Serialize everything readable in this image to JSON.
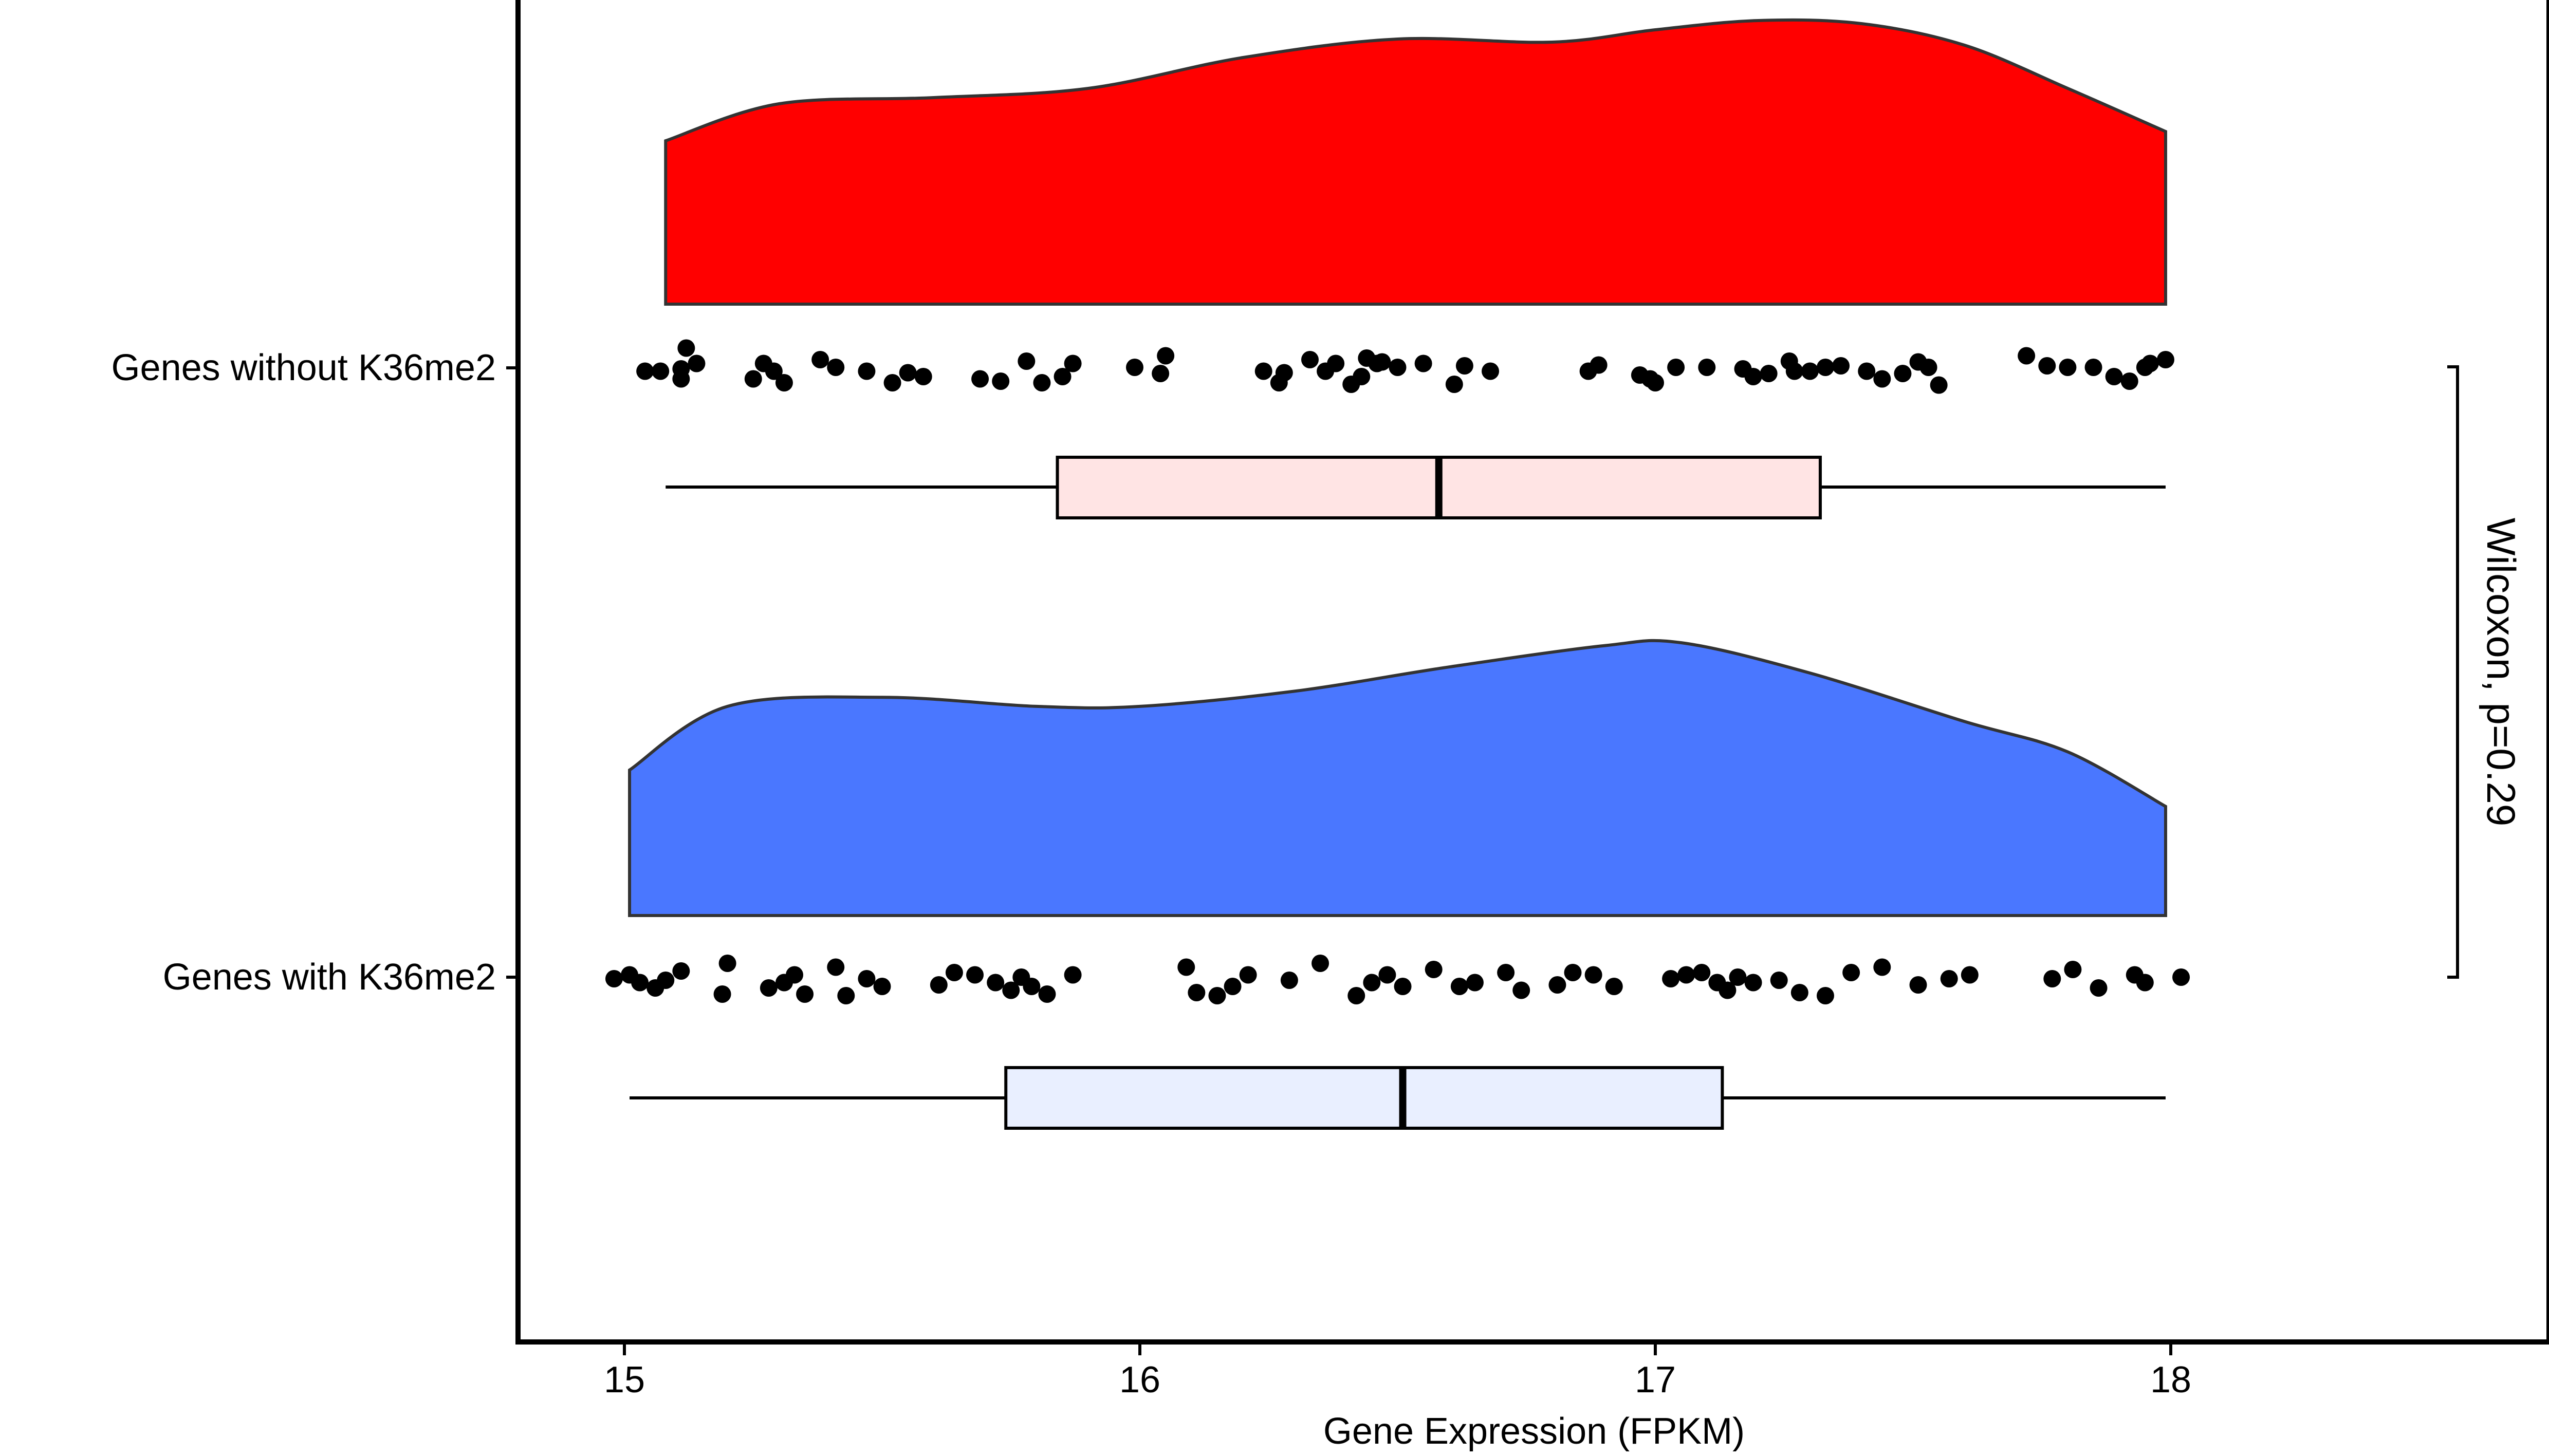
{
  "chart_data": {
    "type": "raincloud",
    "xlabel": "Gene Expression (FPKM)",
    "ylabel": "",
    "title": "",
    "xlim": [
      14.82,
      18.72
    ],
    "xticks": [
      15,
      16,
      17,
      18
    ],
    "xtick_labels": [
      "15",
      "16",
      "17",
      "18"
    ],
    "grid": false,
    "legend": "none",
    "annotation": {
      "text": "Wilcoxon, p=0.29",
      "spans_groups": [
        "Genes without K36me2",
        "Genes with K36me2"
      ]
    },
    "groups": [
      {
        "label": "Genes without K36me2",
        "fill_color": "#ff0000",
        "box_color": "#ffe4e4",
        "density": {
          "x": [
            15.08,
            15.3,
            15.6,
            15.9,
            16.2,
            16.5,
            16.8,
            17.0,
            17.2,
            17.4,
            17.6,
            17.8,
            17.99
          ],
          "y": [
            0.53,
            0.65,
            0.67,
            0.7,
            0.8,
            0.86,
            0.85,
            0.89,
            0.92,
            0.91,
            0.84,
            0.7,
            0.56
          ]
        },
        "box": {
          "min": 15.08,
          "q1": 15.84,
          "median": 16.58,
          "q3": 17.32,
          "max": 17.99
        },
        "points": {
          "x": [
            15.04,
            15.07,
            15.11,
            15.12,
            15.14,
            15.11,
            15.25,
            15.27,
            15.29,
            15.31,
            15.38,
            15.41,
            15.47,
            15.52,
            15.55,
            15.58,
            15.69,
            15.73,
            15.78,
            15.81,
            15.85,
            15.87,
            15.99,
            16.04,
            16.05,
            16.24,
            16.27,
            16.28,
            16.33,
            16.36,
            16.38,
            16.41,
            16.43,
            16.44,
            16.46,
            16.47,
            16.5,
            16.55,
            16.61,
            16.63,
            16.68,
            16.87,
            16.89,
            16.97,
            16.99,
            17.0,
            17.04,
            17.1,
            17.17,
            17.19,
            17.22,
            17.26,
            17.27,
            17.3,
            17.33,
            17.36,
            17.41,
            17.44,
            17.48,
            17.51,
            17.53,
            17.55,
            17.72,
            17.76,
            17.8,
            17.85,
            17.89,
            17.92,
            17.95,
            17.96,
            17.99
          ],
          "j": [
            0.55,
            0.55,
            0.52,
            0.25,
            0.45,
            0.65,
            0.65,
            0.45,
            0.55,
            0.7,
            0.4,
            0.5,
            0.55,
            0.7,
            0.57,
            0.62,
            0.65,
            0.68,
            0.42,
            0.7,
            0.62,
            0.45,
            0.5,
            0.58,
            0.35,
            0.55,
            0.7,
            0.57,
            0.4,
            0.55,
            0.45,
            0.72,
            0.62,
            0.38,
            0.45,
            0.43,
            0.5,
            0.45,
            0.72,
            0.48,
            0.55,
            0.55,
            0.47,
            0.6,
            0.65,
            0.7,
            0.5,
            0.5,
            0.52,
            0.62,
            0.58,
            0.42,
            0.55,
            0.55,
            0.5,
            0.48,
            0.55,
            0.65,
            0.58,
            0.43,
            0.5,
            0.73,
            0.35,
            0.48,
            0.5,
            0.5,
            0.62,
            0.68,
            0.5,
            0.45,
            0.4
          ]
        }
      },
      {
        "label": "Genes with K36me2",
        "fill_color": "#4a77ff",
        "box_color": "#e9efff",
        "density": {
          "x": [
            15.01,
            15.2,
            15.5,
            15.8,
            16.0,
            16.3,
            16.6,
            16.9,
            17.05,
            17.3,
            17.6,
            17.8,
            17.99
          ],
          "y": [
            0.48,
            0.69,
            0.72,
            0.69,
            0.69,
            0.74,
            0.82,
            0.89,
            0.9,
            0.8,
            0.64,
            0.54,
            0.36
          ]
        },
        "box": {
          "min": 15.01,
          "q1": 15.74,
          "median": 16.51,
          "q3": 17.13,
          "max": 17.99
        },
        "points": {
          "x": [
            14.98,
            15.01,
            15.03,
            15.06,
            15.08,
            15.11,
            15.19,
            15.2,
            15.28,
            15.31,
            15.33,
            15.35,
            15.41,
            15.43,
            15.47,
            15.5,
            15.61,
            15.64,
            15.68,
            15.72,
            15.75,
            15.77,
            15.79,
            15.82,
            15.87,
            16.09,
            16.11,
            16.15,
            16.18,
            16.21,
            16.29,
            16.35,
            16.42,
            16.45,
            16.48,
            16.51,
            16.57,
            16.62,
            16.65,
            16.71,
            16.74,
            16.81,
            16.84,
            16.88,
            16.92,
            17.03,
            17.06,
            17.09,
            17.12,
            17.14,
            17.16,
            17.19,
            17.24,
            17.28,
            17.33,
            17.38,
            17.44,
            17.51,
            17.57,
            17.61,
            17.77,
            17.81,
            17.86,
            17.93,
            17.95,
            18.02
          ],
          "j": [
            0.5,
            0.45,
            0.55,
            0.62,
            0.52,
            0.4,
            0.7,
            0.3,
            0.62,
            0.55,
            0.45,
            0.7,
            0.35,
            0.72,
            0.5,
            0.6,
            0.58,
            0.42,
            0.45,
            0.55,
            0.65,
            0.48,
            0.6,
            0.7,
            0.45,
            0.35,
            0.68,
            0.72,
            0.6,
            0.45,
            0.52,
            0.3,
            0.72,
            0.55,
            0.45,
            0.6,
            0.38,
            0.6,
            0.55,
            0.42,
            0.65,
            0.58,
            0.42,
            0.45,
            0.6,
            0.5,
            0.45,
            0.42,
            0.55,
            0.65,
            0.48,
            0.55,
            0.52,
            0.68,
            0.72,
            0.42,
            0.35,
            0.58,
            0.5,
            0.45,
            0.5,
            0.38,
            0.62,
            0.45,
            0.55,
            0.48
          ]
        }
      }
    ]
  }
}
